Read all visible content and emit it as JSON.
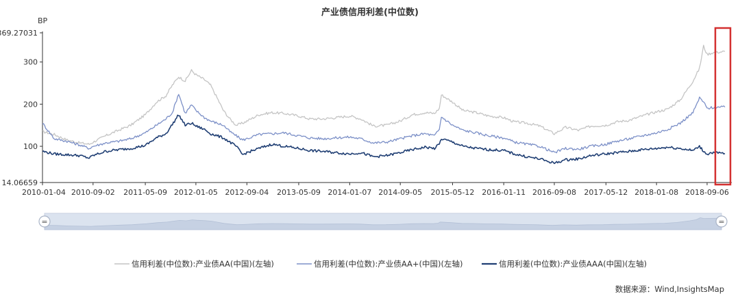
{
  "chart_data": {
    "type": "line",
    "title": "产业债信用利差(中位数)",
    "ylabel": "BP",
    "ylim": [
      14.06659,
      369.27031
    ],
    "yticks": [
      "369.27031",
      "300",
      "200",
      "100",
      "14.06659"
    ],
    "ytick_values": [
      369.27031,
      300,
      200,
      100,
      14.06659
    ],
    "xlim": [
      "2010-01-04",
      "2018-11-30"
    ],
    "xticks": [
      "2010-01-04",
      "2010-09-02",
      "2011-05-09",
      "2012-01-05",
      "2012-09-04",
      "2013-05-09",
      "2014-01-07",
      "2014-09-05",
      "2015-05-12",
      "2016-01-11",
      "2016-09-08",
      "2017-05-12",
      "2018-01-08",
      "2018-09-06"
    ],
    "grid": false,
    "legend_position": "bottom",
    "series": [
      {
        "name": "信用利差(中位数):产业债AA(中国)(左轴)",
        "color": "#c4c4c4",
        "x": [
          "2010-01-04",
          "2010-03-01",
          "2010-05-01",
          "2010-07-01",
          "2010-08-15",
          "2010-09-02",
          "2010-11-01",
          "2011-01-01",
          "2011-03-01",
          "2011-05-09",
          "2011-07-01",
          "2011-08-15",
          "2011-09-15",
          "2011-10-15",
          "2011-11-15",
          "2011-12-15",
          "2012-01-05",
          "2012-02-15",
          "2012-03-15",
          "2012-04-15",
          "2012-05-15",
          "2012-06-15",
          "2012-07-15",
          "2012-08-15",
          "2012-09-04",
          "2012-11-01",
          "2013-01-01",
          "2013-03-01",
          "2013-05-09",
          "2013-07-01",
          "2013-09-01",
          "2013-11-01",
          "2014-01-07",
          "2014-03-01",
          "2014-05-01",
          "2014-07-01",
          "2014-09-05",
          "2014-11-01",
          "2015-01-01",
          "2015-02-15",
          "2015-03-10",
          "2015-03-20",
          "2015-05-12",
          "2015-07-01",
          "2015-09-01",
          "2015-11-01",
          "2016-01-11",
          "2016-03-01",
          "2016-05-01",
          "2016-07-01",
          "2016-09-08",
          "2016-11-01",
          "2017-01-01",
          "2017-03-01",
          "2017-05-12",
          "2017-07-01",
          "2017-09-01",
          "2017-11-01",
          "2018-01-08",
          "2018-03-01",
          "2018-05-01",
          "2018-07-01",
          "2018-08-01",
          "2018-08-20",
          "2018-09-06",
          "2018-10-01",
          "2018-11-30"
        ],
        "values": [
          135,
          128,
          115,
          108,
          105,
          110,
          125,
          138,
          150,
          175,
          205,
          220,
          245,
          265,
          255,
          280,
          270,
          258,
          245,
          215,
          185,
          165,
          150,
          155,
          160,
          175,
          180,
          178,
          172,
          165,
          165,
          168,
          172,
          165,
          148,
          150,
          160,
          175,
          180,
          178,
          190,
          222,
          205,
          185,
          180,
          172,
          168,
          158,
          155,
          148,
          130,
          145,
          138,
          148,
          150,
          158,
          162,
          172,
          182,
          188,
          210,
          255,
          285,
          338,
          318,
          322,
          325
        ]
      },
      {
        "name": "信用利差(中位数):产业债AA+(中国)(左轴)",
        "color": "#7b8fc7",
        "x": [
          "2010-01-04",
          "2010-03-01",
          "2010-05-01",
          "2010-07-01",
          "2010-08-15",
          "2010-09-02",
          "2010-11-01",
          "2011-01-01",
          "2011-03-01",
          "2011-05-09",
          "2011-07-01",
          "2011-08-15",
          "2011-09-15",
          "2011-10-15",
          "2011-11-15",
          "2011-12-15",
          "2012-01-05",
          "2012-02-15",
          "2012-03-15",
          "2012-04-15",
          "2012-05-15",
          "2012-06-15",
          "2012-07-15",
          "2012-08-15",
          "2012-09-04",
          "2012-11-01",
          "2013-01-01",
          "2013-03-01",
          "2013-05-09",
          "2013-07-01",
          "2013-09-01",
          "2013-11-01",
          "2014-01-07",
          "2014-03-01",
          "2014-05-01",
          "2014-07-01",
          "2014-09-05",
          "2014-11-01",
          "2015-01-01",
          "2015-02-15",
          "2015-03-10",
          "2015-03-20",
          "2015-05-12",
          "2015-07-01",
          "2015-09-01",
          "2015-11-01",
          "2016-01-11",
          "2016-03-01",
          "2016-05-01",
          "2016-07-01",
          "2016-09-08",
          "2016-11-01",
          "2017-01-01",
          "2017-03-01",
          "2017-05-12",
          "2017-07-01",
          "2017-09-01",
          "2017-11-01",
          "2018-01-08",
          "2018-03-01",
          "2018-05-01",
          "2018-07-01",
          "2018-08-01",
          "2018-08-20",
          "2018-09-06",
          "2018-10-01",
          "2018-11-30"
        ],
        "values": [
          155,
          118,
          112,
          103,
          95,
          100,
          108,
          112,
          118,
          132,
          150,
          165,
          180,
          225,
          178,
          198,
          185,
          168,
          160,
          155,
          150,
          135,
          125,
          115,
          118,
          128,
          130,
          132,
          125,
          120,
          118,
          120,
          122,
          118,
          108,
          110,
          118,
          125,
          130,
          125,
          140,
          170,
          150,
          138,
          132,
          125,
          120,
          110,
          105,
          100,
          85,
          95,
          93,
          100,
          105,
          112,
          118,
          125,
          132,
          140,
          155,
          180,
          215,
          205,
          190,
          192,
          193
        ]
      },
      {
        "name": "信用利差(中位数):产业债AAA(中国)(左轴)",
        "color": "#1f3e73",
        "x": [
          "2010-01-04",
          "2010-03-01",
          "2010-05-01",
          "2010-07-01",
          "2010-08-15",
          "2010-09-02",
          "2010-11-01",
          "2011-01-01",
          "2011-03-01",
          "2011-05-09",
          "2011-07-01",
          "2011-08-15",
          "2011-09-15",
          "2011-10-15",
          "2011-11-15",
          "2011-12-15",
          "2012-01-05",
          "2012-02-15",
          "2012-03-15",
          "2012-04-15",
          "2012-05-15",
          "2012-06-15",
          "2012-07-15",
          "2012-08-15",
          "2012-09-04",
          "2012-11-01",
          "2013-01-01",
          "2013-03-01",
          "2013-05-09",
          "2013-07-01",
          "2013-09-01",
          "2013-11-01",
          "2014-01-07",
          "2014-03-01",
          "2014-05-01",
          "2014-07-01",
          "2014-09-05",
          "2014-11-01",
          "2015-01-01",
          "2015-02-15",
          "2015-03-10",
          "2015-03-20",
          "2015-05-12",
          "2015-07-01",
          "2015-09-01",
          "2015-11-01",
          "2016-01-11",
          "2016-03-01",
          "2016-05-01",
          "2016-07-01",
          "2016-09-08",
          "2016-11-01",
          "2017-01-01",
          "2017-03-01",
          "2017-05-12",
          "2017-07-01",
          "2017-09-01",
          "2017-11-01",
          "2018-01-08",
          "2018-03-01",
          "2018-05-01",
          "2018-07-01",
          "2018-08-01",
          "2018-08-20",
          "2018-09-06",
          "2018-10-01",
          "2018-11-30"
        ],
        "values": [
          88,
          82,
          80,
          78,
          72,
          78,
          88,
          92,
          95,
          102,
          120,
          130,
          152,
          175,
          150,
          155,
          148,
          140,
          130,
          125,
          120,
          110,
          100,
          80,
          85,
          95,
          105,
          100,
          95,
          90,
          88,
          85,
          82,
          85,
          75,
          78,
          85,
          92,
          98,
          95,
          105,
          118,
          110,
          100,
          95,
          92,
          90,
          82,
          75,
          70,
          60,
          68,
          70,
          78,
          82,
          85,
          88,
          92,
          95,
          98,
          95,
          90,
          100,
          88,
          82,
          85,
          83
        ]
      }
    ],
    "legend": [
      "信用利差(中位数):产业债AA(中国)(左轴)",
      "信用利差(中位数):产业债AA+(中国)(左轴)",
      "信用利差(中位数):产业债AAA(中国)(左轴)"
    ],
    "highlight": {
      "x_from": "2018-09-06",
      "x_to": "2018-11-30",
      "color": "#d32f2f"
    }
  },
  "datazoom": {
    "left_handle_icon": "equals-icon",
    "right_handle_icon": "equals-icon",
    "handle_glyph": "=",
    "fill_color": "#dbe3ef"
  },
  "source_note": "数据来源：Wind,InsightsMap"
}
